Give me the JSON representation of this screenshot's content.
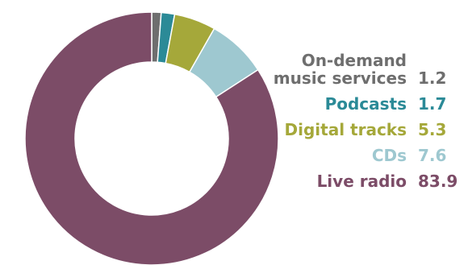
{
  "chart_data": {
    "type": "pie",
    "donut": true,
    "categories": [
      "On-demand\nmusic services",
      "Podcasts",
      "Digital tracks",
      "CDs",
      "Live radio"
    ],
    "values": [
      1.2,
      1.7,
      5.3,
      7.6,
      83.9
    ],
    "value_labels": [
      "1.2",
      "1.7",
      "5.3",
      "7.6",
      "83.9"
    ],
    "colors": [
      "#6e6e6e",
      "#2b8a97",
      "#a5a83a",
      "#9ec8d0",
      "#7c4c67"
    ],
    "legend_placement": "right"
  }
}
